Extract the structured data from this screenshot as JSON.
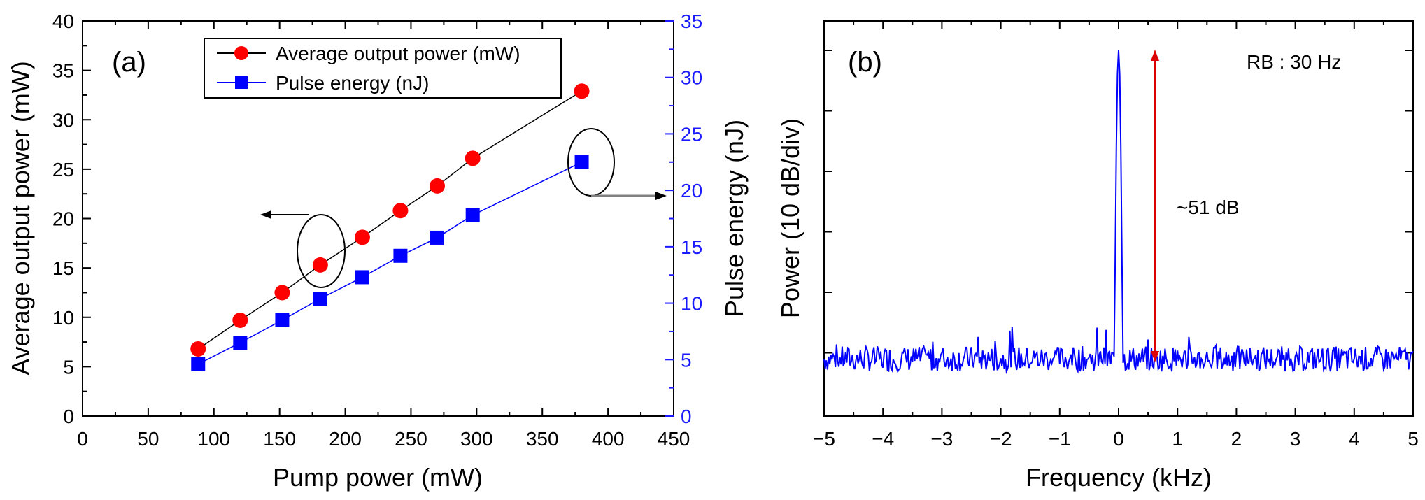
{
  "chart_data": [
    {
      "panel_label": "(a)",
      "type": "line",
      "xlabel": "Pump power (mW)",
      "ylabel": "Average output power (mW)",
      "y2label": "Pulse energy (nJ)",
      "xlim": [
        0,
        450
      ],
      "ylim": [
        0,
        40
      ],
      "y2lim": [
        0,
        35
      ],
      "xticks": [
        0,
        50,
        100,
        150,
        200,
        250,
        300,
        350,
        400,
        450
      ],
      "yticks": [
        0,
        5,
        10,
        15,
        20,
        25,
        30,
        35,
        40
      ],
      "y2ticks": [
        0,
        5,
        10,
        15,
        20,
        25,
        30,
        35
      ],
      "series": [
        {
          "name": "Average output power (mW)",
          "axis": "left",
          "color": "#ff0000",
          "line_color": "#000000",
          "marker": "circle",
          "x": [
            88,
            120,
            152,
            181,
            213,
            242,
            270,
            297,
            380
          ],
          "y": [
            6.8,
            9.7,
            12.5,
            15.3,
            18.1,
            20.8,
            23.3,
            26.1,
            32.9
          ]
        },
        {
          "name": "Pulse energy (nJ)",
          "axis": "right",
          "color": "#0000ff",
          "line_color": "#0000ff",
          "marker": "square",
          "x": [
            88,
            120,
            152,
            181,
            213,
            242,
            270,
            297,
            380
          ],
          "y": [
            4.6,
            6.5,
            8.5,
            10.4,
            12.3,
            14.2,
            15.8,
            17.8,
            22.5
          ]
        }
      ]
    },
    {
      "panel_label": "(b)",
      "type": "line",
      "xlabel": "Frequency (kHz)",
      "ylabel": "Power (10 dB/div)",
      "xlim": [
        -5,
        5
      ],
      "xticks": [
        "−5",
        "−4",
        "−3",
        "−2",
        "−1",
        "0",
        "1",
        "2",
        "3",
        "4",
        "5"
      ],
      "y_divisions_db": 10,
      "noise_floor_db": -51,
      "peak_db": 0,
      "annotation": "~51 dB",
      "rb_label": "RB : 30 Hz",
      "color": "#0000ff",
      "arrow_color": "#dd0000"
    }
  ]
}
